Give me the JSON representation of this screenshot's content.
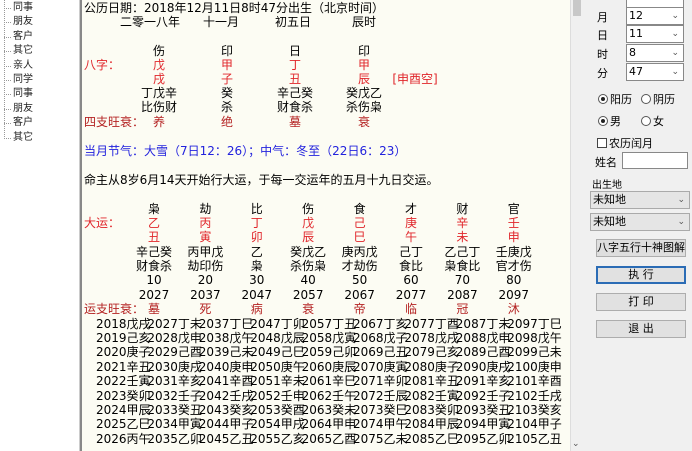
{
  "tree": {
    "items": [
      "同事",
      "朋友",
      "客户",
      "其它",
      "亲人",
      "同学",
      "同事",
      "朋友",
      "客户",
      "其它"
    ]
  },
  "main": {
    "solar_line": "公历日期：2018年12月11日8时47分出生（北京时间）",
    "lunar": [
      "二零一八年",
      "十一月",
      "初五日",
      "辰时"
    ],
    "bazi_label": "八字：",
    "shishen_top": [
      "伤",
      "印",
      "日",
      "印"
    ],
    "stems": [
      "戊",
      "甲",
      "丁",
      "甲"
    ],
    "branches": [
      "戌",
      "子",
      "丑",
      "辰"
    ],
    "kongwang": "[申酉空]",
    "hidden": [
      "丁戊辛",
      "癸",
      "辛己癸",
      "癸戊乙"
    ],
    "hidden_shishen": [
      "比伤财",
      "杀",
      "财食杀",
      "杀伤枭"
    ],
    "zhi_label": "四支旺衰：",
    "zhi_state": [
      "养",
      "绝",
      "墓",
      "衰"
    ],
    "jieqi": "当月节气：大雪（7日12：26）；中气：冬至（22日6：23）",
    "qiyun": "命主从8岁6月14天开始行大运，于每一交运年的五月十九日交运。",
    "dayun_label": "大运：",
    "dayun_shishen": [
      "枭",
      "劫",
      "比",
      "伤",
      "食",
      "才",
      "财",
      "官"
    ],
    "dayun_stems": [
      "乙",
      "丙",
      "丁",
      "戊",
      "己",
      "庚",
      "辛",
      "壬"
    ],
    "dayun_branches": [
      "丑",
      "寅",
      "卯",
      "辰",
      "巳",
      "午",
      "未",
      "申"
    ],
    "dayun_hidden": [
      "辛己癸",
      "丙甲戊",
      "乙",
      "癸戊乙",
      "庚丙戊",
      "己丁",
      "乙己丁",
      "壬庚戊"
    ],
    "dayun_hidden_shishen": [
      "财食杀",
      "劫印伤",
      "枭",
      "杀伤枭",
      "才劫伤",
      "食比",
      "枭食比",
      "官才伤"
    ],
    "dayun_ages": [
      "10",
      "20",
      "30",
      "40",
      "50",
      "60",
      "70",
      "80"
    ],
    "dayun_years": [
      "2027",
      "2037",
      "2047",
      "2057",
      "2067",
      "2077",
      "2087",
      "2097"
    ],
    "yunzhi_label": "运支旺衰：",
    "yunzhi_state": [
      "墓",
      "死",
      "病",
      "衰",
      "帝",
      "临",
      "冠",
      "沐"
    ],
    "liunian": [
      [
        "2018戊戌",
        "2027丁未",
        "2037丁巳",
        "2047丁卯",
        "2057丁丑",
        "2067丁亥",
        "2077丁酉",
        "2087丁未",
        "2097丁巳"
      ],
      [
        "2019己亥",
        "2028戊申",
        "2038戊午",
        "2048戊辰",
        "2058戊寅",
        "2068戊子",
        "2078戊戌",
        "2088戊申",
        "2098戊午"
      ],
      [
        "2020庚子",
        "2029己酉",
        "2039己未",
        "2049己巳",
        "2059己卯",
        "2069己丑",
        "2079己亥",
        "2089己酉",
        "2099己未"
      ],
      [
        "2021辛丑",
        "2030庚戌",
        "2040庚申",
        "2050庚午",
        "2060庚辰",
        "2070庚寅",
        "2080庚子",
        "2090庚戌",
        "2100庚申"
      ],
      [
        "2022壬寅",
        "2031辛亥",
        "2041辛酉",
        "2051辛未",
        "2061辛巳",
        "2071辛卯",
        "2081辛丑",
        "2091辛亥",
        "2101辛酉"
      ],
      [
        "2023癸卯",
        "2032壬子",
        "2042壬戌",
        "2052壬申",
        "2062壬午",
        "2072壬辰",
        "2082壬寅",
        "2092壬子",
        "2102壬戌"
      ],
      [
        "2024甲辰",
        "2033癸丑",
        "2043癸亥",
        "2053癸酉",
        "2063癸未",
        "2073癸巳",
        "2083癸卯",
        "2093癸丑",
        "2103癸亥"
      ],
      [
        "2025乙巳",
        "2034甲寅",
        "2044甲子",
        "2054甲戌",
        "2064甲申",
        "2074甲午",
        "2084甲辰",
        "2094甲寅",
        "2104甲子"
      ],
      [
        "2026丙午",
        "2035乙卯",
        "2045乙丑",
        "2055乙亥",
        "2065乙酉",
        "2075乙未",
        "2085乙巳",
        "2095乙卯",
        "2105乙丑"
      ]
    ]
  },
  "panel": {
    "month_label": "月",
    "month": "12",
    "day_label": "日",
    "day": "11",
    "hour_label": "时",
    "hour": "8",
    "minute_label": "分",
    "minute": "47",
    "solar": "阳历",
    "lunar": "阴历",
    "male": "男",
    "female": "女",
    "leap": "农历闰月",
    "name_label": "姓名",
    "name_value": "",
    "birthplace_label": "出生地",
    "place1": "未知地",
    "place2": "未知地",
    "diagram_btn": "八字五行十神图解",
    "run_btn": "执 行",
    "print_btn": "打 印",
    "exit_btn": "退 出"
  },
  "colors": {
    "red": "#e0262b",
    "dark_red": "#b42323",
    "blue": "#2222dd",
    "text_bg": "#fcfcf3"
  }
}
